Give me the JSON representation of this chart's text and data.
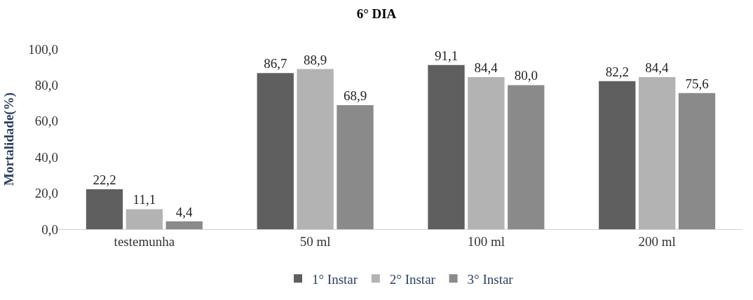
{
  "chart_data": {
    "type": "bar",
    "title": "6° DIA",
    "ylabel": "Mortalidade(%)",
    "categories": [
      "testemunha",
      "50 ml",
      "100 ml",
      "200 ml"
    ],
    "series": [
      {
        "name": "1° Instar",
        "color": "#5f5f5f",
        "values": [
          22.2,
          86.7,
          91.1,
          82.2
        ],
        "value_labels": [
          "22,2",
          "86,7",
          "91,1",
          "82,2"
        ]
      },
      {
        "name": "2° Instar",
        "color": "#b3b3b3",
        "values": [
          11.1,
          88.9,
          84.4,
          84.4
        ],
        "value_labels": [
          "11,1",
          "88,9",
          "84,4",
          "84,4"
        ]
      },
      {
        "name": "3° Instar",
        "color": "#8a8a8a",
        "values": [
          4.4,
          68.9,
          80.0,
          75.6
        ],
        "value_labels": [
          "4,4",
          "68,9",
          "80,0",
          "75,6"
        ]
      }
    ],
    "ylim": [
      0,
      100
    ],
    "yticks": [
      {
        "value": 0,
        "label": "0,0"
      },
      {
        "value": 20,
        "label": "20,0"
      },
      {
        "value": 40,
        "label": "40,0"
      },
      {
        "value": 60,
        "label": "60,0"
      },
      {
        "value": 80,
        "label": "80,0"
      },
      {
        "value": 100,
        "label": "100,0"
      }
    ],
    "grid": false,
    "legend": "bottom"
  }
}
